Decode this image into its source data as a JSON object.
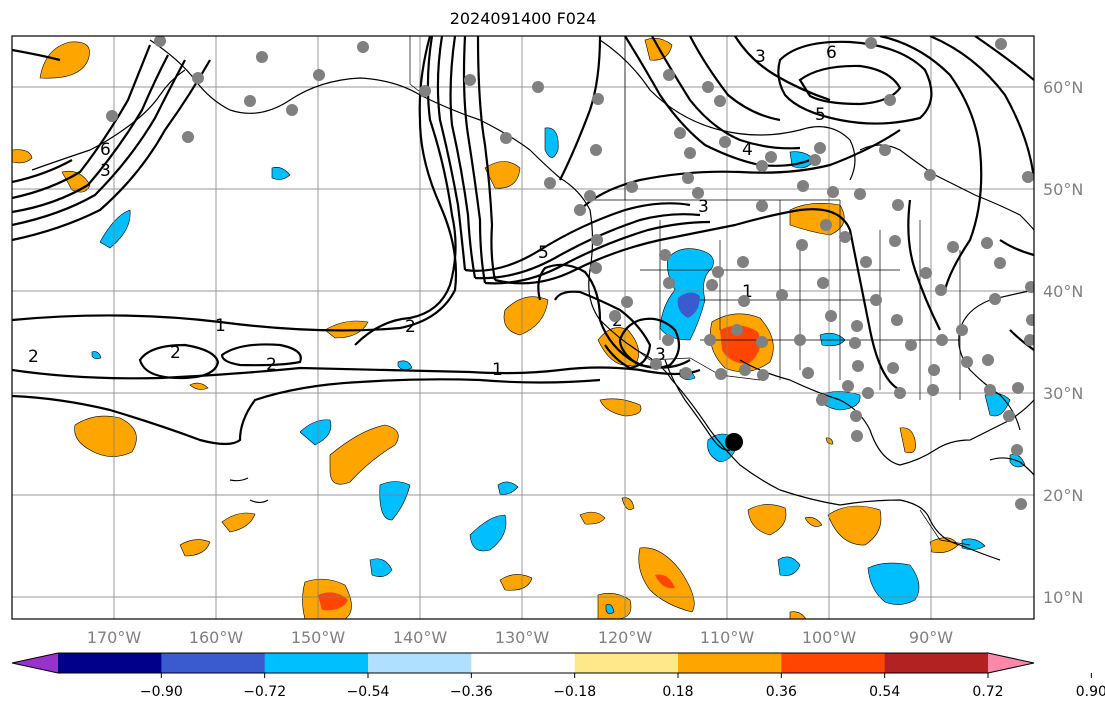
{
  "title": "2024091400 F024",
  "map": {
    "lon_labels": [
      "170°W",
      "160°W",
      "150°W",
      "140°W",
      "130°W",
      "120°W",
      "110°W",
      "100°W",
      "90°W"
    ],
    "lat_labels": [
      "60°N",
      "50°N",
      "40°N",
      "30°N",
      "20°N",
      "10°N"
    ],
    "contour_labels": [
      "1",
      "1",
      "1",
      "2",
      "2",
      "2",
      "2",
      "3",
      "3",
      "3",
      "4",
      "5",
      "6",
      "6",
      "2",
      "5",
      "3"
    ],
    "contour_color": "#000000",
    "station_dot_color": "#808080",
    "marker_color": "#000000"
  },
  "colorbar": {
    "ticks": [
      "−0.90",
      "−0.72",
      "−0.54",
      "−0.36",
      "−0.18",
      "0.18",
      "0.36",
      "0.54",
      "0.72",
      "0.90"
    ],
    "colors": [
      "#9932cc",
      "#00008b",
      "#3a5bd0",
      "#00bfff",
      "#b0e0ff",
      "#ffffff",
      "#ffe88a",
      "#ffa500",
      "#ff4500",
      "#b22222",
      "#ff88aa"
    ]
  }
}
